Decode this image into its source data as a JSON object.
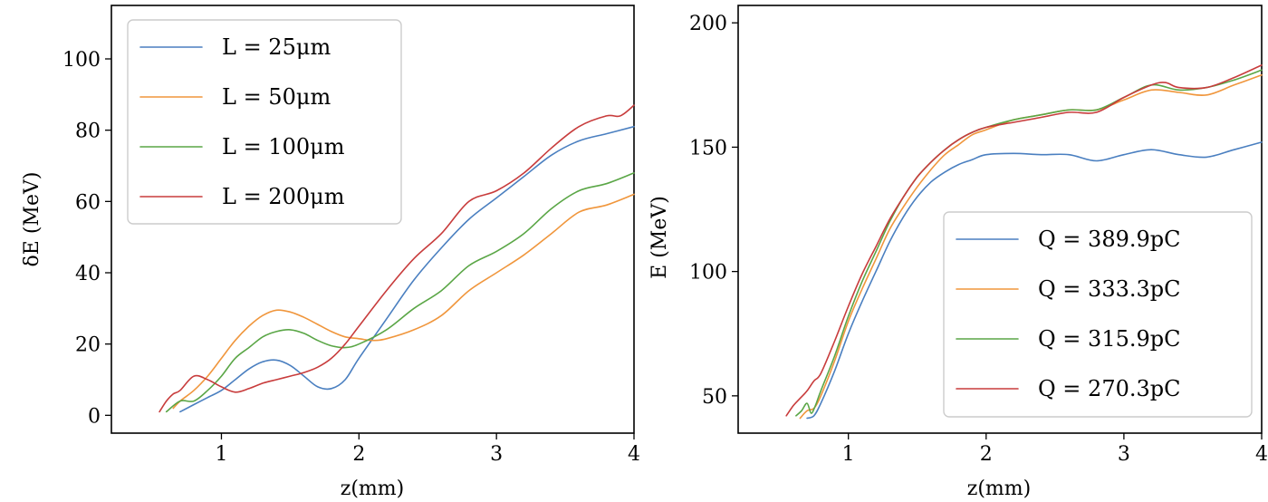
{
  "colors": {
    "blue": "#4a7fc0",
    "orange": "#f0963c",
    "green": "#5aa646",
    "red": "#c83c3c"
  },
  "chart_data": [
    {
      "type": "line",
      "title": "",
      "xlabel": "z(mm)",
      "ylabel": "δE (MeV)",
      "xlim": [
        0.2,
        4.0
      ],
      "ylim": [
        -5,
        115
      ],
      "xticks": [
        "1",
        "2",
        "3",
        "4"
      ],
      "yticks": [
        "0",
        "20",
        "40",
        "60",
        "80",
        "100"
      ],
      "legend_placement": "upper-left",
      "grid": false,
      "series": [
        {
          "name": "L = 25μm",
          "color": "#4a7fc0",
          "x": [
            0.7,
            0.8,
            0.9,
            1.0,
            1.1,
            1.2,
            1.3,
            1.4,
            1.5,
            1.6,
            1.7,
            1.8,
            1.9,
            2.0,
            2.2,
            2.4,
            2.6,
            2.8,
            3.0,
            3.2,
            3.4,
            3.6,
            3.8,
            4.0
          ],
          "y": [
            1,
            3,
            5,
            7,
            10,
            13,
            15,
            15.5,
            14,
            11,
            8,
            7.5,
            10,
            16,
            27,
            38,
            47,
            55,
            61,
            67,
            73,
            77,
            79,
            81
          ]
        },
        {
          "name": "L = 50μm",
          "color": "#f0963c",
          "x": [
            0.65,
            0.7,
            0.8,
            0.9,
            1.0,
            1.1,
            1.2,
            1.3,
            1.4,
            1.5,
            1.6,
            1.7,
            1.8,
            1.9,
            2.0,
            2.1,
            2.2,
            2.4,
            2.6,
            2.8,
            3.0,
            3.2,
            3.4,
            3.6,
            3.8,
            4.0
          ],
          "y": [
            2,
            4,
            7,
            11,
            16,
            21,
            25,
            28,
            29.5,
            29,
            27.5,
            25.5,
            23.5,
            22,
            21.5,
            21,
            21.5,
            24,
            28,
            35,
            40,
            45,
            51,
            57,
            59,
            62
          ]
        },
        {
          "name": "L = 100μm",
          "color": "#5aa646",
          "x": [
            0.6,
            0.7,
            0.8,
            0.9,
            1.0,
            1.1,
            1.2,
            1.3,
            1.4,
            1.5,
            1.6,
            1.7,
            1.8,
            1.9,
            2.0,
            2.2,
            2.4,
            2.6,
            2.8,
            3.0,
            3.2,
            3.4,
            3.6,
            3.8,
            4.0
          ],
          "y": [
            1,
            4,
            4,
            7,
            11,
            16,
            19,
            22,
            23.5,
            24,
            23,
            21,
            19.5,
            19,
            20,
            24,
            30,
            35,
            42,
            46,
            51,
            58,
            63,
            65,
            68
          ]
        },
        {
          "name": "L = 200μm",
          "color": "#c83c3c",
          "x": [
            0.55,
            0.6,
            0.65,
            0.7,
            0.8,
            0.9,
            1.0,
            1.1,
            1.2,
            1.3,
            1.4,
            1.5,
            1.6,
            1.7,
            1.8,
            1.9,
            2.0,
            2.2,
            2.4,
            2.6,
            2.8,
            3.0,
            3.2,
            3.4,
            3.6,
            3.8,
            3.9,
            4.0
          ],
          "y": [
            1,
            4,
            6,
            7,
            11,
            10,
            8,
            6.5,
            7.5,
            9,
            10,
            11,
            12,
            13.5,
            16,
            20,
            25,
            35,
            44,
            51,
            60,
            63,
            68,
            75,
            81,
            84,
            84,
            87
          ]
        }
      ]
    },
    {
      "type": "line",
      "title": "",
      "xlabel": "z(mm)",
      "ylabel": "E (MeV)",
      "xlim": [
        0.2,
        4.0
      ],
      "ylim": [
        35,
        207
      ],
      "xticks": [
        "1",
        "2",
        "3",
        "4"
      ],
      "yticks": [
        "50",
        "100",
        "150",
        "200"
      ],
      "legend_placement": "lower-right",
      "grid": false,
      "series": [
        {
          "name": "Q = 389.9pC",
          "color": "#4a7fc0",
          "x": [
            0.7,
            0.75,
            0.8,
            0.9,
            1.0,
            1.1,
            1.2,
            1.3,
            1.4,
            1.5,
            1.6,
            1.7,
            1.8,
            1.9,
            2.0,
            2.2,
            2.4,
            2.6,
            2.8,
            3.0,
            3.2,
            3.4,
            3.6,
            3.8,
            4.0
          ],
          "y": [
            41,
            42,
            47,
            60,
            75,
            88,
            100,
            112,
            122,
            130,
            136,
            140,
            143,
            145,
            147,
            147.5,
            147,
            147,
            144.5,
            147,
            149,
            147,
            146,
            149,
            152
          ]
        },
        {
          "name": "Q = 333.3pC",
          "color": "#f0963c",
          "x": [
            0.65,
            0.7,
            0.75,
            0.8,
            0.9,
            1.0,
            1.1,
            1.2,
            1.3,
            1.4,
            1.5,
            1.6,
            1.7,
            1.8,
            1.9,
            2.0,
            2.2,
            2.4,
            2.6,
            2.8,
            3.0,
            3.2,
            3.4,
            3.6,
            3.8,
            4.0
          ],
          "y": [
            41,
            44,
            45,
            50,
            64,
            80,
            93,
            105,
            117,
            126,
            134,
            141,
            147,
            151,
            155,
            157,
            161,
            163,
            165,
            165,
            169,
            173,
            172,
            171,
            175,
            179
          ]
        },
        {
          "name": "Q = 315.9pC",
          "color": "#5aa646",
          "x": [
            0.62,
            0.66,
            0.7,
            0.73,
            0.76,
            0.8,
            0.9,
            1.0,
            1.1,
            1.2,
            1.3,
            1.4,
            1.5,
            1.6,
            1.7,
            1.8,
            1.9,
            2.0,
            2.2,
            2.4,
            2.6,
            2.8,
            3.0,
            3.2,
            3.4,
            3.6,
            3.8,
            4.0
          ],
          "y": [
            42,
            44,
            47,
            43,
            46,
            52,
            66,
            82,
            96,
            108,
            120,
            130,
            138,
            144,
            149,
            153,
            156,
            158,
            161,
            163,
            165,
            165,
            170,
            175,
            173,
            174,
            177,
            181
          ]
        },
        {
          "name": "Q = 270.3pC",
          "color": "#c83c3c",
          "x": [
            0.55,
            0.6,
            0.65,
            0.7,
            0.75,
            0.8,
            0.9,
            1.0,
            1.1,
            1.2,
            1.3,
            1.4,
            1.5,
            1.6,
            1.7,
            1.8,
            1.9,
            2.0,
            2.2,
            2.4,
            2.6,
            2.8,
            3.0,
            3.2,
            3.3,
            3.4,
            3.6,
            3.8,
            4.0
          ],
          "y": [
            42,
            46,
            49,
            52,
            56,
            59,
            72,
            86,
            99,
            110,
            121,
            130,
            138,
            144,
            149,
            153,
            156,
            158,
            160,
            162,
            164,
            164,
            170,
            175,
            176,
            174,
            174,
            178,
            183
          ]
        }
      ]
    }
  ]
}
